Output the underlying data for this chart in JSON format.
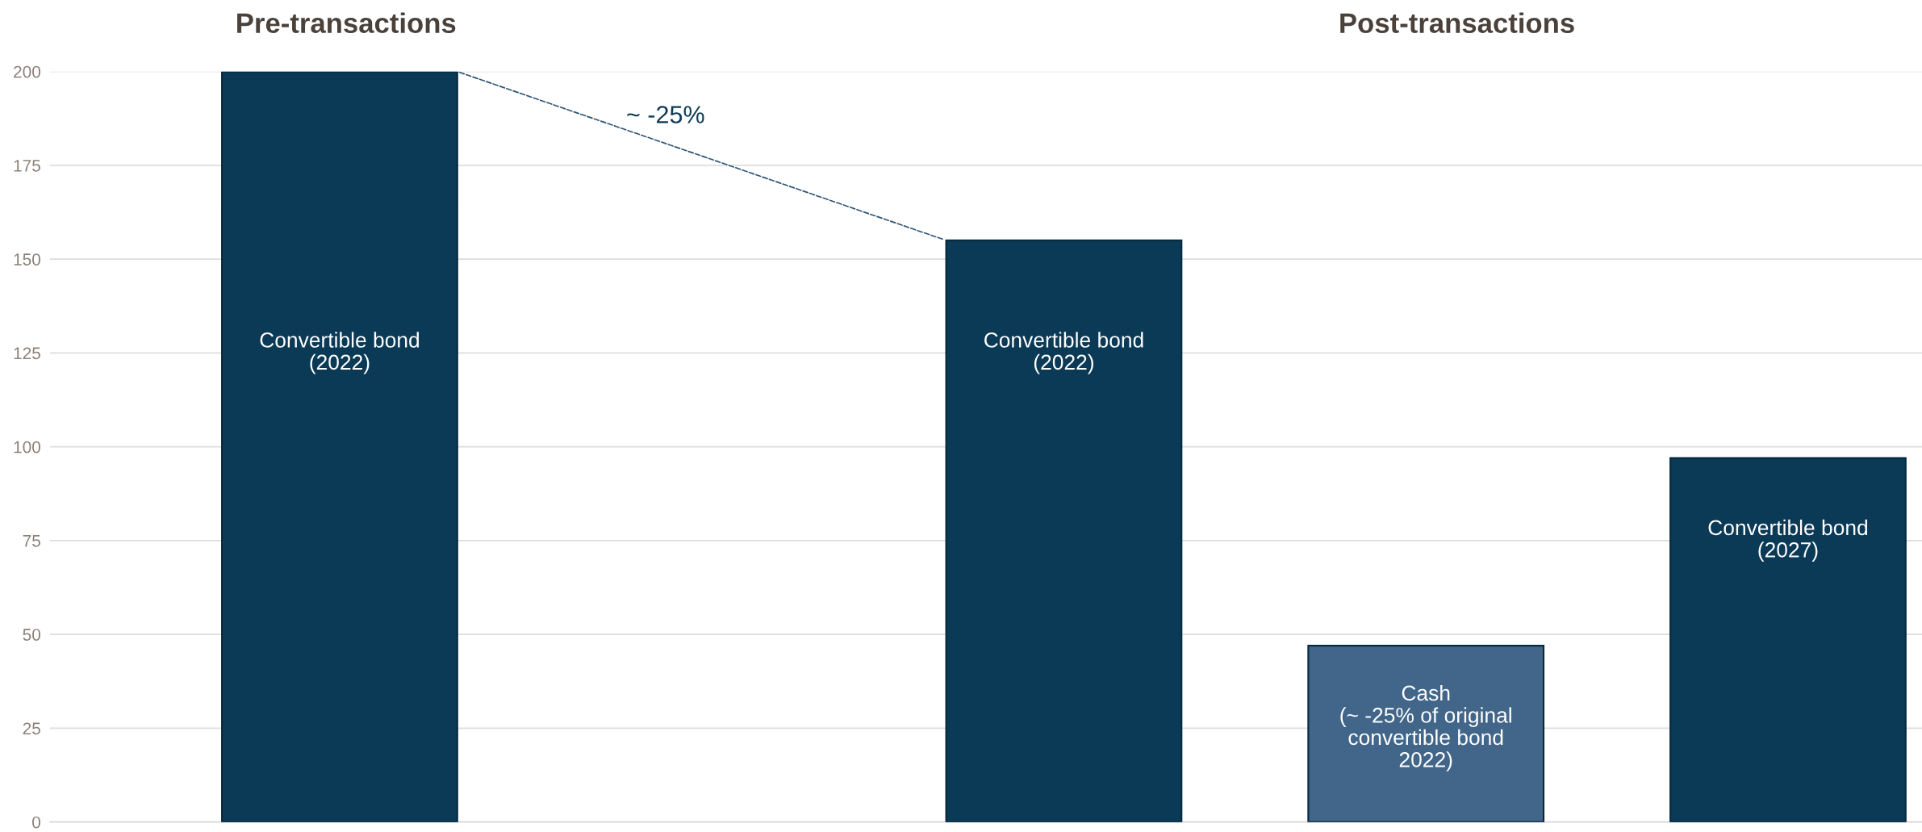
{
  "chart_data": {
    "type": "bar",
    "categories": [
      "Convertible bond\n(2022)",
      null,
      "Convertible bond\n(2022)",
      "Cash\n(~ -25% of original\nconvertible bond\n2022)",
      "Convertible bond\n(2027)"
    ],
    "values": [
      200,
      null,
      155,
      47,
      97
    ],
    "colors": [
      "#0b3a57",
      "#0b3a57",
      "#0b3a57",
      "#42668a",
      "#0b3a57"
    ],
    "ylim": [
      0,
      200
    ],
    "yticks": [
      0,
      25,
      50,
      75,
      100,
      125,
      150,
      175,
      200
    ],
    "grid": "y",
    "legend": false,
    "annotations": [
      "Pre-transactions",
      "Post-transactions",
      "~ -25%"
    ]
  }
}
